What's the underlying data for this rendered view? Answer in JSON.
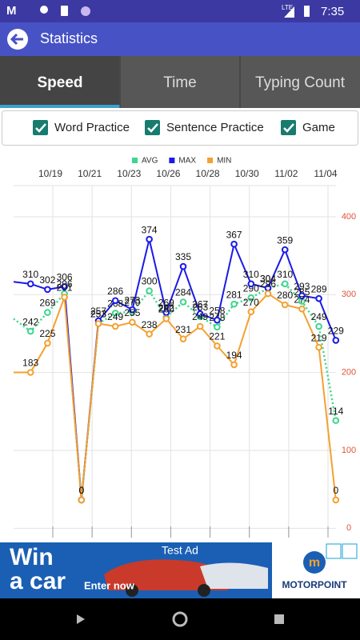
{
  "status_bar": {
    "network": "LTE",
    "time": "7:35"
  },
  "app_bar": {
    "title": "Statistics"
  },
  "tabs": [
    "Speed",
    "Time",
    "Typing Count"
  ],
  "filters": [
    "Word Practice",
    "Sentence Practice",
    "Game"
  ],
  "chart_data": {
    "type": "line",
    "categories": [
      null,
      null,
      null,
      null,
      null,
      null,
      null,
      null,
      null,
      null,
      null,
      null,
      null,
      null,
      null,
      null,
      null,
      null,
      null,
      null
    ],
    "x_tick_labels": [
      "10/19",
      "10/21",
      "10/23",
      "10/26",
      "10/28",
      "10/30",
      "11/02",
      "11/04"
    ],
    "series": [
      {
        "name": "AVG",
        "color": "#3dd68c",
        "style": "dotted",
        "values": [
          260,
          242,
          269,
          296,
          0,
          253,
          268,
          270,
          300,
          262,
          284,
          263,
          248,
          281,
          290,
          304,
          310,
          285,
          249,
          114
        ]
      },
      {
        "name": "MAX",
        "color": "#1a1ae6",
        "style": "solid",
        "values": [
          313,
          310,
          302,
          306,
          0,
          257,
          286,
          273,
          374,
          269,
          335,
          267,
          258,
          367,
          310,
          304,
          359,
          293,
          289,
          229
        ]
      },
      {
        "name": "MIN",
        "color": "#f5a030",
        "style": "solid",
        "values": [
          183,
          183,
          225,
          291,
          0,
          253,
          249,
          255,
          238,
          260,
          231,
          249,
          221,
          194,
          270,
          296,
          280,
          274,
          219,
          0
        ]
      }
    ],
    "ylim": [
      -54,
      451
    ],
    "y2lim": [
      -12,
      440
    ],
    "y2ticks": [
      0,
      100,
      200,
      300,
      400
    ],
    "y2_color": "#e0553a",
    "grid": true,
    "legend": "top"
  },
  "ad": {
    "label": "Test Ad",
    "headline_1": "Win",
    "headline_2": "a car",
    "cta": "Enter now",
    "brand": "MOTORPOINT"
  }
}
